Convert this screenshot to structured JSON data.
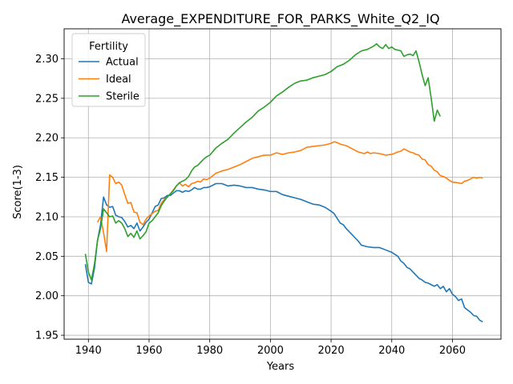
{
  "chart_data": {
    "type": "line",
    "title": "Average_EXPENDITURE_FOR_PARKS_White_Q2_IQ",
    "xlabel": "Years",
    "ylabel": "Score(1-3)",
    "xlim": [
      1932,
      2076
    ],
    "ylim": [
      1.945,
      2.338
    ],
    "xticks": [
      1940,
      1960,
      1980,
      2000,
      2020,
      2040,
      2060
    ],
    "yticks": [
      1.95,
      2.0,
      2.05,
      2.1,
      2.15,
      2.2,
      2.25,
      2.3
    ],
    "ytick_labels": [
      "1.95",
      "2.00",
      "2.05",
      "2.10",
      "2.15",
      "2.20",
      "2.25",
      "2.30"
    ],
    "grid": true,
    "legend": {
      "title": "Fertility",
      "placement": "top-left"
    },
    "series": [
      {
        "name": "Actual",
        "color": "#1f77b4",
        "points": [
          [
            1939,
            2.04
          ],
          [
            1940,
            2.017
          ],
          [
            1941,
            2.015
          ],
          [
            1942,
            2.035
          ],
          [
            1943,
            2.07
          ],
          [
            1944,
            2.09
          ],
          [
            1945,
            2.125
          ],
          [
            1946,
            2.115
          ],
          [
            1947,
            2.112
          ],
          [
            1948,
            2.113
          ],
          [
            1949,
            2.102
          ],
          [
            1950,
            2.1
          ],
          [
            1951,
            2.099
          ],
          [
            1952,
            2.094
          ],
          [
            1953,
            2.087
          ],
          [
            1954,
            2.089
          ],
          [
            1955,
            2.085
          ],
          [
            1956,
            2.092
          ],
          [
            1957,
            2.082
          ],
          [
            1958,
            2.087
          ],
          [
            1959,
            2.093
          ],
          [
            1960,
            2.097
          ],
          [
            1961,
            2.105
          ],
          [
            1962,
            2.113
          ],
          [
            1963,
            2.115
          ],
          [
            1964,
            2.123
          ],
          [
            1965,
            2.124
          ],
          [
            1966,
            2.127
          ],
          [
            1967,
            2.127
          ],
          [
            1968,
            2.13
          ],
          [
            1969,
            2.133
          ],
          [
            1970,
            2.133
          ],
          [
            1971,
            2.131
          ],
          [
            1972,
            2.133
          ],
          [
            1973,
            2.132
          ],
          [
            1974,
            2.134
          ],
          [
            1975,
            2.137
          ],
          [
            1976,
            2.135
          ],
          [
            1977,
            2.135
          ],
          [
            1978,
            2.137
          ],
          [
            1979,
            2.137
          ],
          [
            1980,
            2.138
          ],
          [
            1982,
            2.142
          ],
          [
            1984,
            2.142
          ],
          [
            1986,
            2.139
          ],
          [
            1988,
            2.14
          ],
          [
            1990,
            2.139
          ],
          [
            1992,
            2.137
          ],
          [
            1994,
            2.137
          ],
          [
            1996,
            2.135
          ],
          [
            1998,
            2.134
          ],
          [
            2000,
            2.132
          ],
          [
            2002,
            2.132
          ],
          [
            2004,
            2.128
          ],
          [
            2006,
            2.126
          ],
          [
            2008,
            2.124
          ],
          [
            2010,
            2.122
          ],
          [
            2012,
            2.119
          ],
          [
            2014,
            2.116
          ],
          [
            2016,
            2.115
          ],
          [
            2018,
            2.112
          ],
          [
            2020,
            2.107
          ],
          [
            2021,
            2.104
          ],
          [
            2022,
            2.098
          ],
          [
            2023,
            2.092
          ],
          [
            2024,
            2.09
          ],
          [
            2025,
            2.085
          ],
          [
            2026,
            2.081
          ],
          [
            2027,
            2.077
          ],
          [
            2028,
            2.073
          ],
          [
            2029,
            2.069
          ],
          [
            2030,
            2.064
          ],
          [
            2031,
            2.063
          ],
          [
            2032,
            2.062
          ],
          [
            2034,
            2.061
          ],
          [
            2036,
            2.061
          ],
          [
            2038,
            2.058
          ],
          [
            2040,
            2.055
          ],
          [
            2042,
            2.05
          ],
          [
            2043,
            2.044
          ],
          [
            2044,
            2.041
          ],
          [
            2045,
            2.036
          ],
          [
            2046,
            2.034
          ],
          [
            2047,
            2.03
          ],
          [
            2048,
            2.026
          ],
          [
            2049,
            2.022
          ],
          [
            2050,
            2.02
          ],
          [
            2051,
            2.017
          ],
          [
            2052,
            2.016
          ],
          [
            2053,
            2.014
          ],
          [
            2054,
            2.012
          ],
          [
            2055,
            2.014
          ],
          [
            2056,
            2.009
          ],
          [
            2057,
            2.012
          ],
          [
            2058,
            2.005
          ],
          [
            2059,
            2.009
          ],
          [
            2060,
            2.002
          ],
          [
            2061,
            1.999
          ],
          [
            2062,
            1.994
          ],
          [
            2063,
            1.996
          ],
          [
            2064,
            1.985
          ],
          [
            2065,
            1.982
          ],
          [
            2066,
            1.979
          ],
          [
            2067,
            1.975
          ],
          [
            2068,
            1.974
          ],
          [
            2069,
            1.969
          ],
          [
            2070,
            1.967
          ]
        ]
      },
      {
        "name": "Ideal",
        "color": "#ff7f0e",
        "points": [
          [
            1943,
            2.093
          ],
          [
            1944,
            2.1
          ],
          [
            1945,
            2.08
          ],
          [
            1946,
            2.056
          ],
          [
            1947,
            2.153
          ],
          [
            1948,
            2.15
          ],
          [
            1949,
            2.142
          ],
          [
            1950,
            2.144
          ],
          [
            1951,
            2.14
          ],
          [
            1952,
            2.128
          ],
          [
            1953,
            2.117
          ],
          [
            1954,
            2.118
          ],
          [
            1955,
            2.106
          ],
          [
            1956,
            2.105
          ],
          [
            1957,
            2.093
          ],
          [
            1958,
            2.09
          ],
          [
            1959,
            2.097
          ],
          [
            1960,
            2.101
          ],
          [
            1961,
            2.104
          ],
          [
            1962,
            2.107
          ],
          [
            1963,
            2.108
          ],
          [
            1964,
            2.117
          ],
          [
            1965,
            2.122
          ],
          [
            1966,
            2.125
          ],
          [
            1967,
            2.129
          ],
          [
            1968,
            2.134
          ],
          [
            1969,
            2.139
          ],
          [
            1970,
            2.143
          ],
          [
            1971,
            2.139
          ],
          [
            1972,
            2.141
          ],
          [
            1973,
            2.138
          ],
          [
            1974,
            2.142
          ],
          [
            1975,
            2.143
          ],
          [
            1976,
            2.145
          ],
          [
            1977,
            2.144
          ],
          [
            1978,
            2.148
          ],
          [
            1979,
            2.147
          ],
          [
            1980,
            2.149
          ],
          [
            1982,
            2.155
          ],
          [
            1984,
            2.158
          ],
          [
            1986,
            2.16
          ],
          [
            1988,
            2.163
          ],
          [
            1990,
            2.166
          ],
          [
            1992,
            2.17
          ],
          [
            1994,
            2.174
          ],
          [
            1996,
            2.176
          ],
          [
            1998,
            2.178
          ],
          [
            2000,
            2.178
          ],
          [
            2002,
            2.181
          ],
          [
            2004,
            2.179
          ],
          [
            2006,
            2.181
          ],
          [
            2008,
            2.182
          ],
          [
            2010,
            2.184
          ],
          [
            2012,
            2.188
          ],
          [
            2014,
            2.189
          ],
          [
            2016,
            2.19
          ],
          [
            2018,
            2.191
          ],
          [
            2020,
            2.193
          ],
          [
            2021,
            2.195
          ],
          [
            2022,
            2.194
          ],
          [
            2023,
            2.192
          ],
          [
            2024,
            2.191
          ],
          [
            2025,
            2.19
          ],
          [
            2026,
            2.188
          ],
          [
            2027,
            2.186
          ],
          [
            2028,
            2.184
          ],
          [
            2029,
            2.182
          ],
          [
            2030,
            2.181
          ],
          [
            2031,
            2.18
          ],
          [
            2032,
            2.182
          ],
          [
            2033,
            2.18
          ],
          [
            2034,
            2.181
          ],
          [
            2036,
            2.18
          ],
          [
            2038,
            2.178
          ],
          [
            2040,
            2.179
          ],
          [
            2042,
            2.182
          ],
          [
            2043,
            2.183
          ],
          [
            2044,
            2.186
          ],
          [
            2045,
            2.184
          ],
          [
            2046,
            2.182
          ],
          [
            2047,
            2.181
          ],
          [
            2048,
            2.179
          ],
          [
            2049,
            2.178
          ],
          [
            2050,
            2.173
          ],
          [
            2051,
            2.172
          ],
          [
            2052,
            2.166
          ],
          [
            2053,
            2.164
          ],
          [
            2054,
            2.159
          ],
          [
            2055,
            2.157
          ],
          [
            2056,
            2.152
          ],
          [
            2057,
            2.151
          ],
          [
            2058,
            2.149
          ],
          [
            2059,
            2.146
          ],
          [
            2060,
            2.144
          ],
          [
            2062,
            2.143
          ],
          [
            2063,
            2.142
          ],
          [
            2064,
            2.145
          ],
          [
            2065,
            2.146
          ],
          [
            2066,
            2.148
          ],
          [
            2067,
            2.15
          ],
          [
            2068,
            2.149
          ],
          [
            2069,
            2.15
          ],
          [
            2070,
            2.149
          ]
        ]
      },
      {
        "name": "Sterile",
        "color": "#2ca02c",
        "points": [
          [
            1939,
            2.053
          ],
          [
            1940,
            2.03
          ],
          [
            1941,
            2.02
          ],
          [
            1942,
            2.04
          ],
          [
            1943,
            2.07
          ],
          [
            1944,
            2.085
          ],
          [
            1945,
            2.11
          ],
          [
            1946,
            2.105
          ],
          [
            1947,
            2.1
          ],
          [
            1948,
            2.101
          ],
          [
            1949,
            2.092
          ],
          [
            1950,
            2.095
          ],
          [
            1951,
            2.092
          ],
          [
            1952,
            2.085
          ],
          [
            1953,
            2.075
          ],
          [
            1954,
            2.079
          ],
          [
            1955,
            2.074
          ],
          [
            1956,
            2.082
          ],
          [
            1957,
            2.072
          ],
          [
            1958,
            2.076
          ],
          [
            1959,
            2.081
          ],
          [
            1960,
            2.092
          ],
          [
            1961,
            2.095
          ],
          [
            1962,
            2.1
          ],
          [
            1963,
            2.105
          ],
          [
            1964,
            2.114
          ],
          [
            1965,
            2.12
          ],
          [
            1966,
            2.125
          ],
          [
            1967,
            2.129
          ],
          [
            1968,
            2.133
          ],
          [
            1969,
            2.139
          ],
          [
            1970,
            2.143
          ],
          [
            1971,
            2.145
          ],
          [
            1972,
            2.147
          ],
          [
            1973,
            2.151
          ],
          [
            1974,
            2.158
          ],
          [
            1975,
            2.163
          ],
          [
            1976,
            2.165
          ],
          [
            1977,
            2.169
          ],
          [
            1978,
            2.173
          ],
          [
            1979,
            2.176
          ],
          [
            1980,
            2.178
          ],
          [
            1982,
            2.187
          ],
          [
            1984,
            2.193
          ],
          [
            1986,
            2.198
          ],
          [
            1988,
            2.206
          ],
          [
            1990,
            2.213
          ],
          [
            1992,
            2.22
          ],
          [
            1994,
            2.226
          ],
          [
            1996,
            2.234
          ],
          [
            1998,
            2.239
          ],
          [
            2000,
            2.245
          ],
          [
            2002,
            2.253
          ],
          [
            2004,
            2.258
          ],
          [
            2006,
            2.264
          ],
          [
            2008,
            2.269
          ],
          [
            2010,
            2.272
          ],
          [
            2012,
            2.273
          ],
          [
            2014,
            2.276
          ],
          [
            2016,
            2.278
          ],
          [
            2018,
            2.28
          ],
          [
            2020,
            2.284
          ],
          [
            2022,
            2.29
          ],
          [
            2024,
            2.293
          ],
          [
            2026,
            2.298
          ],
          [
            2028,
            2.305
          ],
          [
            2030,
            2.31
          ],
          [
            2032,
            2.312
          ],
          [
            2034,
            2.316
          ],
          [
            2035,
            2.319
          ],
          [
            2036,
            2.315
          ],
          [
            2037,
            2.313
          ],
          [
            2038,
            2.318
          ],
          [
            2039,
            2.313
          ],
          [
            2040,
            2.315
          ],
          [
            2041,
            2.312
          ],
          [
            2042,
            2.311
          ],
          [
            2043,
            2.31
          ],
          [
            2044,
            2.303
          ],
          [
            2045,
            2.305
          ],
          [
            2046,
            2.306
          ],
          [
            2047,
            2.304
          ],
          [
            2048,
            2.31
          ],
          [
            2049,
            2.296
          ],
          [
            2050,
            2.28
          ],
          [
            2051,
            2.266
          ],
          [
            2052,
            2.276
          ],
          [
            2053,
            2.25
          ],
          [
            2054,
            2.221
          ],
          [
            2055,
            2.235
          ],
          [
            2056,
            2.227
          ]
        ]
      }
    ]
  }
}
